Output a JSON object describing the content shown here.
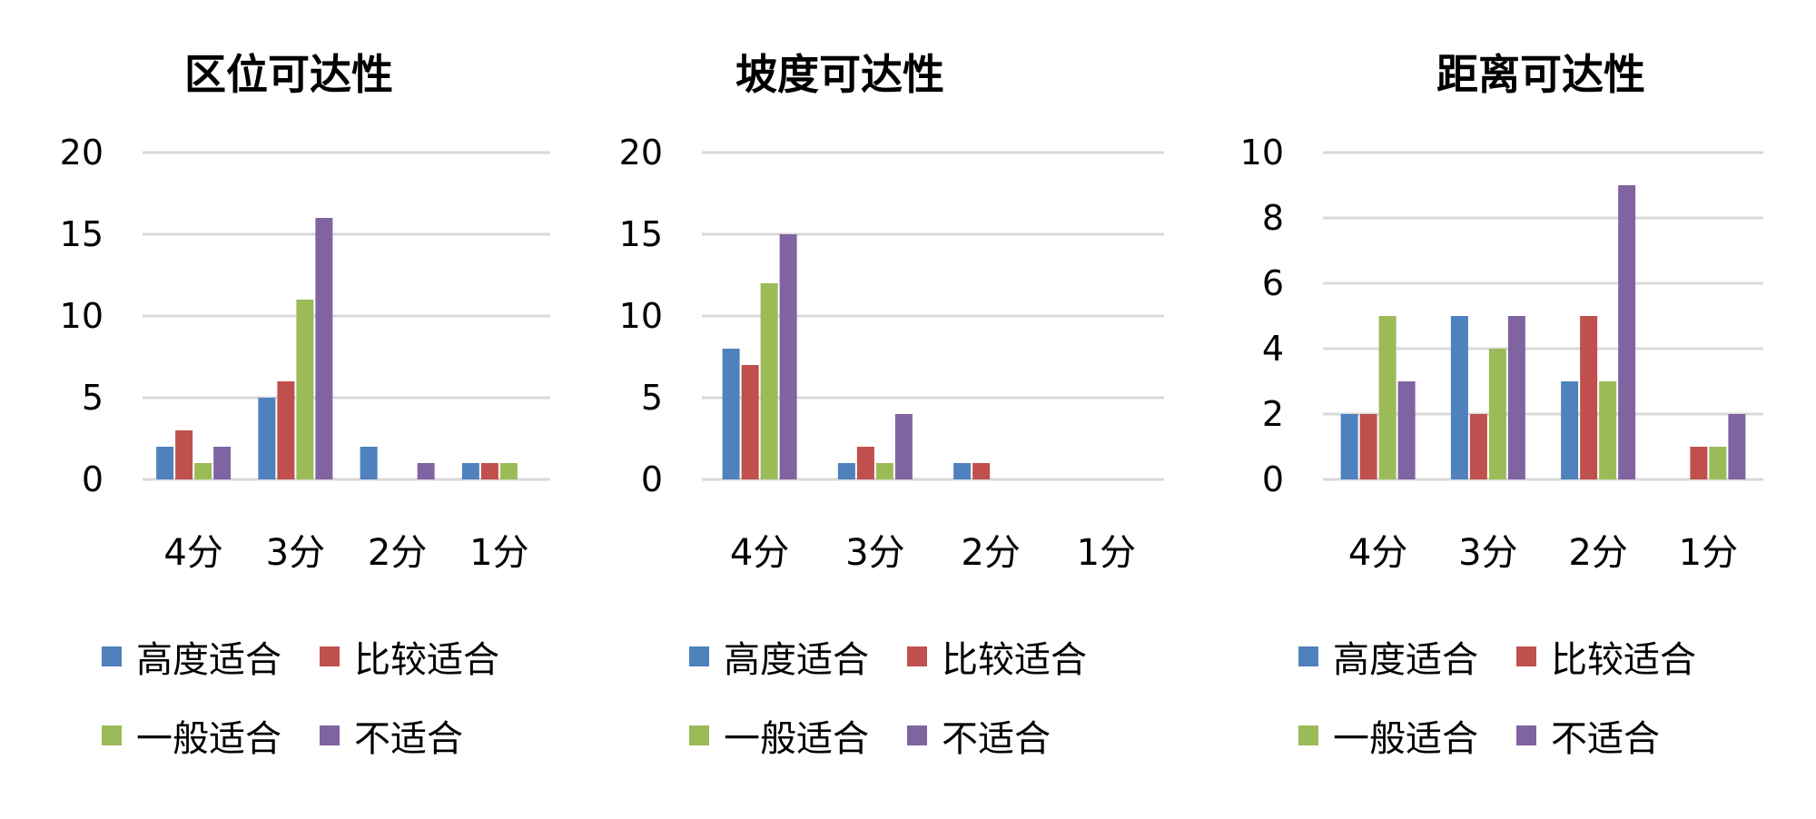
{
  "series_colors": [
    "#4f81bd",
    "#c0504d",
    "#9bbb59",
    "#8064a2"
  ],
  "chart_data": [
    {
      "type": "bar",
      "title": "区位可达性",
      "categories": [
        "4分",
        "3分",
        "2分",
        "1分"
      ],
      "ylim": [
        0,
        20
      ],
      "yticks": [
        "0",
        "5",
        "10",
        "15",
        "20"
      ],
      "grid": true,
      "legend_position": "bottom",
      "series": [
        {
          "name": "高度适合",
          "values": [
            2,
            5,
            2,
            1
          ]
        },
        {
          "name": "比较适合",
          "values": [
            3,
            6,
            0,
            1
          ]
        },
        {
          "name": "一般适合",
          "values": [
            1,
            11,
            0,
            1
          ]
        },
        {
          "name": "不适合",
          "values": [
            2,
            16,
            1,
            0
          ]
        }
      ]
    },
    {
      "type": "bar",
      "title": "坡度可达性",
      "categories": [
        "4分",
        "3分",
        "2分",
        "1分"
      ],
      "ylim": [
        0,
        20
      ],
      "yticks": [
        "0",
        "5",
        "10",
        "15",
        "20"
      ],
      "grid": true,
      "legend_position": "bottom",
      "series": [
        {
          "name": "高度适合",
          "values": [
            8,
            1,
            1,
            0
          ]
        },
        {
          "name": "比较适合",
          "values": [
            7,
            2,
            1,
            0
          ]
        },
        {
          "name": "一般适合",
          "values": [
            12,
            1,
            0,
            0
          ]
        },
        {
          "name": "不适合",
          "values": [
            15,
            4,
            0,
            0
          ]
        }
      ]
    },
    {
      "type": "bar",
      "title": "距离可达性",
      "categories": [
        "4分",
        "3分",
        "2分",
        "1分"
      ],
      "ylim": [
        0,
        10
      ],
      "yticks": [
        "0",
        "2",
        "4",
        "6",
        "8",
        "10"
      ],
      "grid": true,
      "legend_position": "bottom",
      "series": [
        {
          "name": "高度适合",
          "values": [
            2,
            5,
            3,
            0
          ]
        },
        {
          "name": "比较适合",
          "values": [
            2,
            2,
            5,
            1
          ]
        },
        {
          "name": "一般适合",
          "values": [
            5,
            4,
            3,
            1
          ]
        },
        {
          "name": "不适合",
          "values": [
            3,
            5,
            9,
            2
          ]
        }
      ]
    }
  ]
}
